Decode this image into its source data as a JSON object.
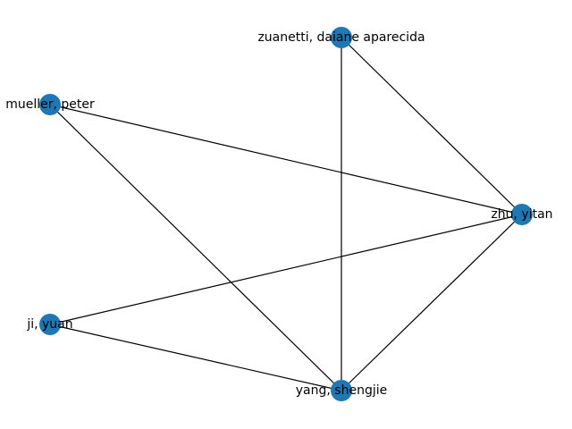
{
  "graph": {
    "node_color": "#1f77b4",
    "edge_color": "#000000",
    "nodes": [
      {
        "id": "zuanetti",
        "label": "zuanetti, daiane aparecida"
      },
      {
        "id": "mueller",
        "label": "mueller, peter"
      },
      {
        "id": "zhu",
        "label": "zhu, yitan"
      },
      {
        "id": "ji",
        "label": "ji, yuan"
      },
      {
        "id": "yang",
        "label": "yang, shengjie"
      }
    ],
    "edges": [
      [
        "zuanetti",
        "zhu"
      ],
      [
        "zuanetti",
        "yang"
      ],
      [
        "mueller",
        "zhu"
      ],
      [
        "mueller",
        "yang"
      ],
      [
        "zhu",
        "ji"
      ],
      [
        "zhu",
        "yang"
      ],
      [
        "ji",
        "yang"
      ]
    ]
  }
}
